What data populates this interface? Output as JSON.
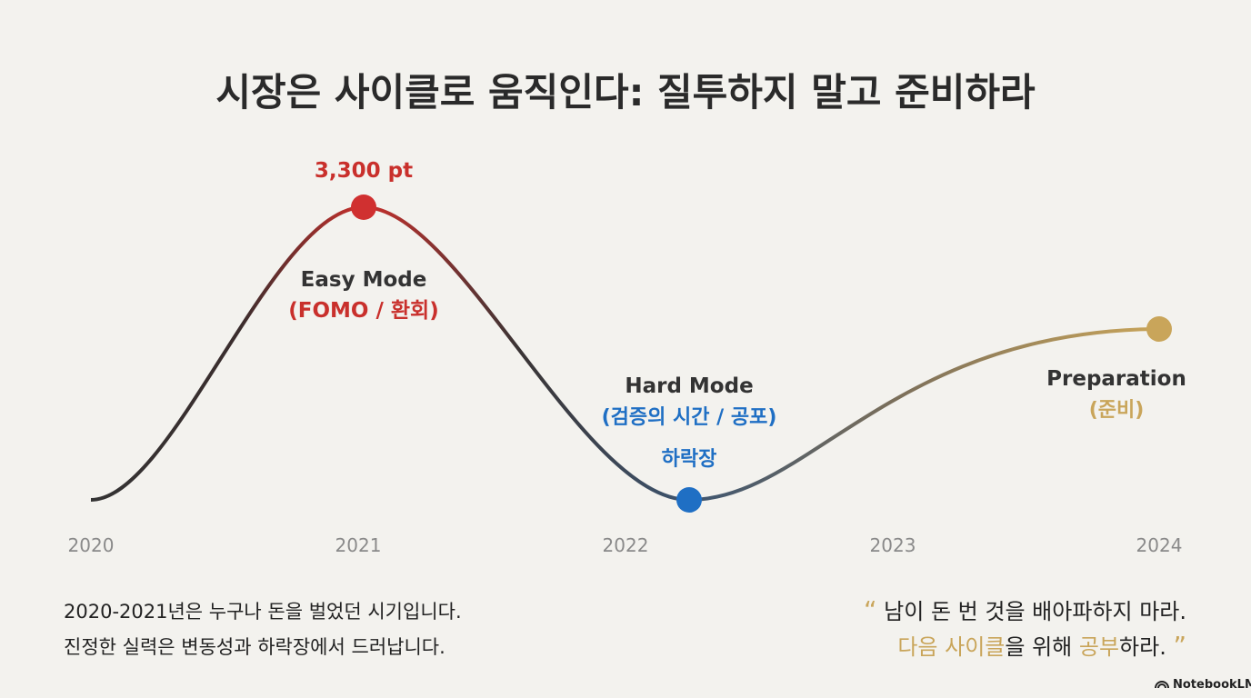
{
  "title": "시장은 사이클로 움직인다: 질투하지 말고 준비하라",
  "curve": {
    "peak_label": "3,300 pt",
    "phases": [
      {
        "name": "Easy Mode",
        "detail": "(FOMO / 환회)"
      },
      {
        "name": "Hard Mode",
        "detail": "(검증의 시간 / 공포)",
        "point_label": "하락장"
      },
      {
        "name": "Preparation",
        "detail": "(준비)"
      }
    ],
    "years": [
      "2020",
      "2021",
      "2022",
      "2023",
      "2024"
    ]
  },
  "caption": [
    "2020-2021년은 누구나 돈을 벌었던 시기입니다.",
    "진정한 실력은 변동성과 하락장에서 드러납니다."
  ],
  "quote": {
    "open": "“",
    "line1": "남이 돈 번 것을 배아파하지 마라.",
    "line2": [
      "다음 사이클",
      "을 위해 ",
      "공부",
      "하라."
    ],
    "close": "”"
  },
  "footer": "NotebookLM"
}
